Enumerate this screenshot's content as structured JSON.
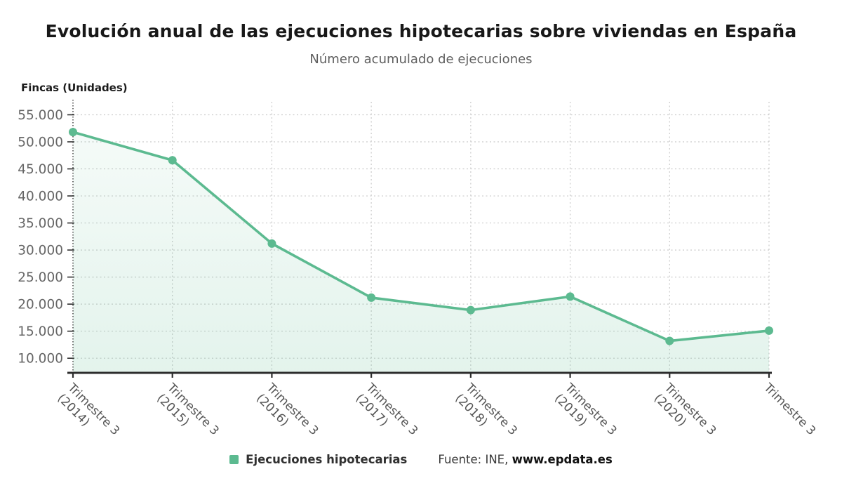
{
  "header": {
    "title": "Evolución anual de las ejecuciones hipotecarias sobre viviendas en España",
    "subtitle": "Número acumulado de ejecuciones"
  },
  "chart_data": {
    "type": "area",
    "title": "Evolución anual de las ejecuciones hipotecarias sobre viviendas en España",
    "subtitle": "Número acumulado de ejecuciones",
    "ylabel": "Fincas (Unidades)",
    "xlabel": "",
    "categories": [
      "Trimestre 3 (2014)",
      "Trimestre 3 (2015)",
      "Trimestre 3 (2016)",
      "Trimestre 3 (2017)",
      "Trimestre 3 (2018)",
      "Trimestre 3 (2019)",
      "Trimestre 3 (2020)",
      "Trimestre 3"
    ],
    "x_tick_lines": [
      [
        "Trimestre 3",
        "(2014)"
      ],
      [
        "Trimestre 3",
        "(2015)"
      ],
      [
        "Trimestre 3",
        "(2016)"
      ],
      [
        "Trimestre 3",
        "(2017)"
      ],
      [
        "Trimestre 3",
        "(2018)"
      ],
      [
        "Trimestre 3",
        "(2019)"
      ],
      [
        "Trimestre 3",
        "(2020)"
      ],
      [
        "Trimestre 3"
      ]
    ],
    "series": [
      {
        "name": "Ejecuciones hipotecarias",
        "values": [
          51800,
          46600,
          31200,
          21200,
          18900,
          21400,
          13200,
          15100
        ],
        "color": "#5cba90"
      }
    ],
    "y_ticks": {
      "values": [
        55000,
        50000,
        45000,
        40000,
        35000,
        30000,
        25000,
        20000,
        15000,
        10000
      ],
      "labels": [
        "55.000",
        "50.000",
        "45.000",
        "40.000",
        "35.000",
        "30.000",
        "25.000",
        "20.000",
        "15.000",
        "10.000"
      ]
    },
    "ylim": [
      7300,
      57400
    ],
    "grid": true,
    "legend_position": "bottom"
  },
  "footer": {
    "legend_label": "Ejecuciones hipotecarias",
    "source_prefix": "Fuente: INE,",
    "source_site": "www.epdata.es"
  },
  "colors": {
    "accent_green": "#5cba90",
    "grid": "#cacaca",
    "axis_dark": "#2d2d2d",
    "y_tick_text": "#666666",
    "x_tick_text": "#555555",
    "title_text": "#181818",
    "subtitle_text": "#5f5f5f"
  }
}
